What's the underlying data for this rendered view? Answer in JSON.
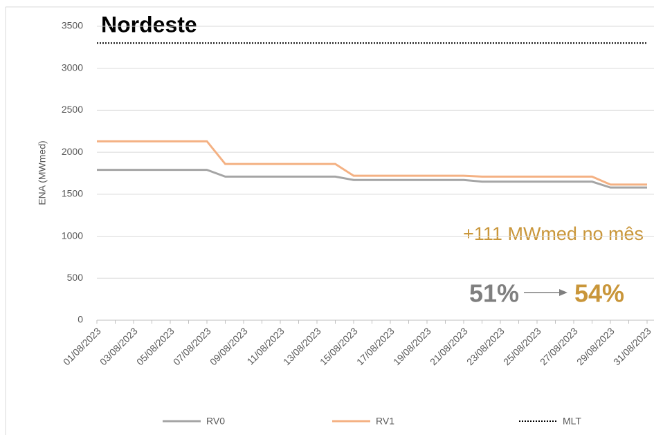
{
  "chart_data": {
    "type": "line",
    "title": "Nordeste",
    "y_label": "ENA (MWmed)",
    "categories": [
      "01/08/2023",
      null,
      "03/08/2023",
      null,
      "05/08/2023",
      null,
      "07/08/2023",
      null,
      "09/08/2023",
      null,
      "11/08/2023",
      null,
      "13/08/2023",
      null,
      "15/08/2023",
      null,
      "17/08/2023",
      null,
      "19/08/2023",
      null,
      "21/08/2023",
      null,
      "23/08/2023",
      null,
      "25/08/2023",
      null,
      "27/08/2023",
      null,
      "29/08/2023",
      null,
      "31/08/2023"
    ],
    "series": [
      {
        "name": "RV0",
        "color": "#a5a5a5",
        "style": "solid",
        "values": [
          1790,
          1790,
          1790,
          1790,
          1790,
          1790,
          1790,
          1710,
          1710,
          1710,
          1710,
          1710,
          1710,
          1710,
          1670,
          1670,
          1670,
          1670,
          1670,
          1670,
          1670,
          1650,
          1650,
          1650,
          1650,
          1650,
          1650,
          1650,
          1580,
          1580,
          1580
        ]
      },
      {
        "name": "RV1",
        "color": "#f4b183",
        "style": "solid",
        "values": [
          2130,
          2130,
          2130,
          2130,
          2130,
          2130,
          2130,
          1860,
          1860,
          1860,
          1860,
          1860,
          1860,
          1860,
          1720,
          1720,
          1720,
          1720,
          1720,
          1720,
          1720,
          1710,
          1710,
          1710,
          1710,
          1710,
          1710,
          1710,
          1615,
          1615,
          1615
        ]
      },
      {
        "name": "MLT",
        "color": "#000000",
        "style": "dotted",
        "values": [
          3300,
          3300,
          3300,
          3300,
          3300,
          3300,
          3300,
          3300,
          3300,
          3300,
          3300,
          3300,
          3300,
          3300,
          3300,
          3300,
          3300,
          3300,
          3300,
          3300,
          3300,
          3300,
          3300,
          3300,
          3300,
          3300,
          3300,
          3300,
          3300,
          3300,
          3300
        ]
      }
    ],
    "ylim": [
      0,
      3500
    ],
    "yticks": [
      0,
      500,
      1000,
      1500,
      2000,
      2500,
      3000,
      3500
    ],
    "grid": true,
    "legend": "bottom",
    "annotations": {
      "change": "+111 MWmed no mês",
      "from": "51%",
      "to": "54%"
    }
  }
}
